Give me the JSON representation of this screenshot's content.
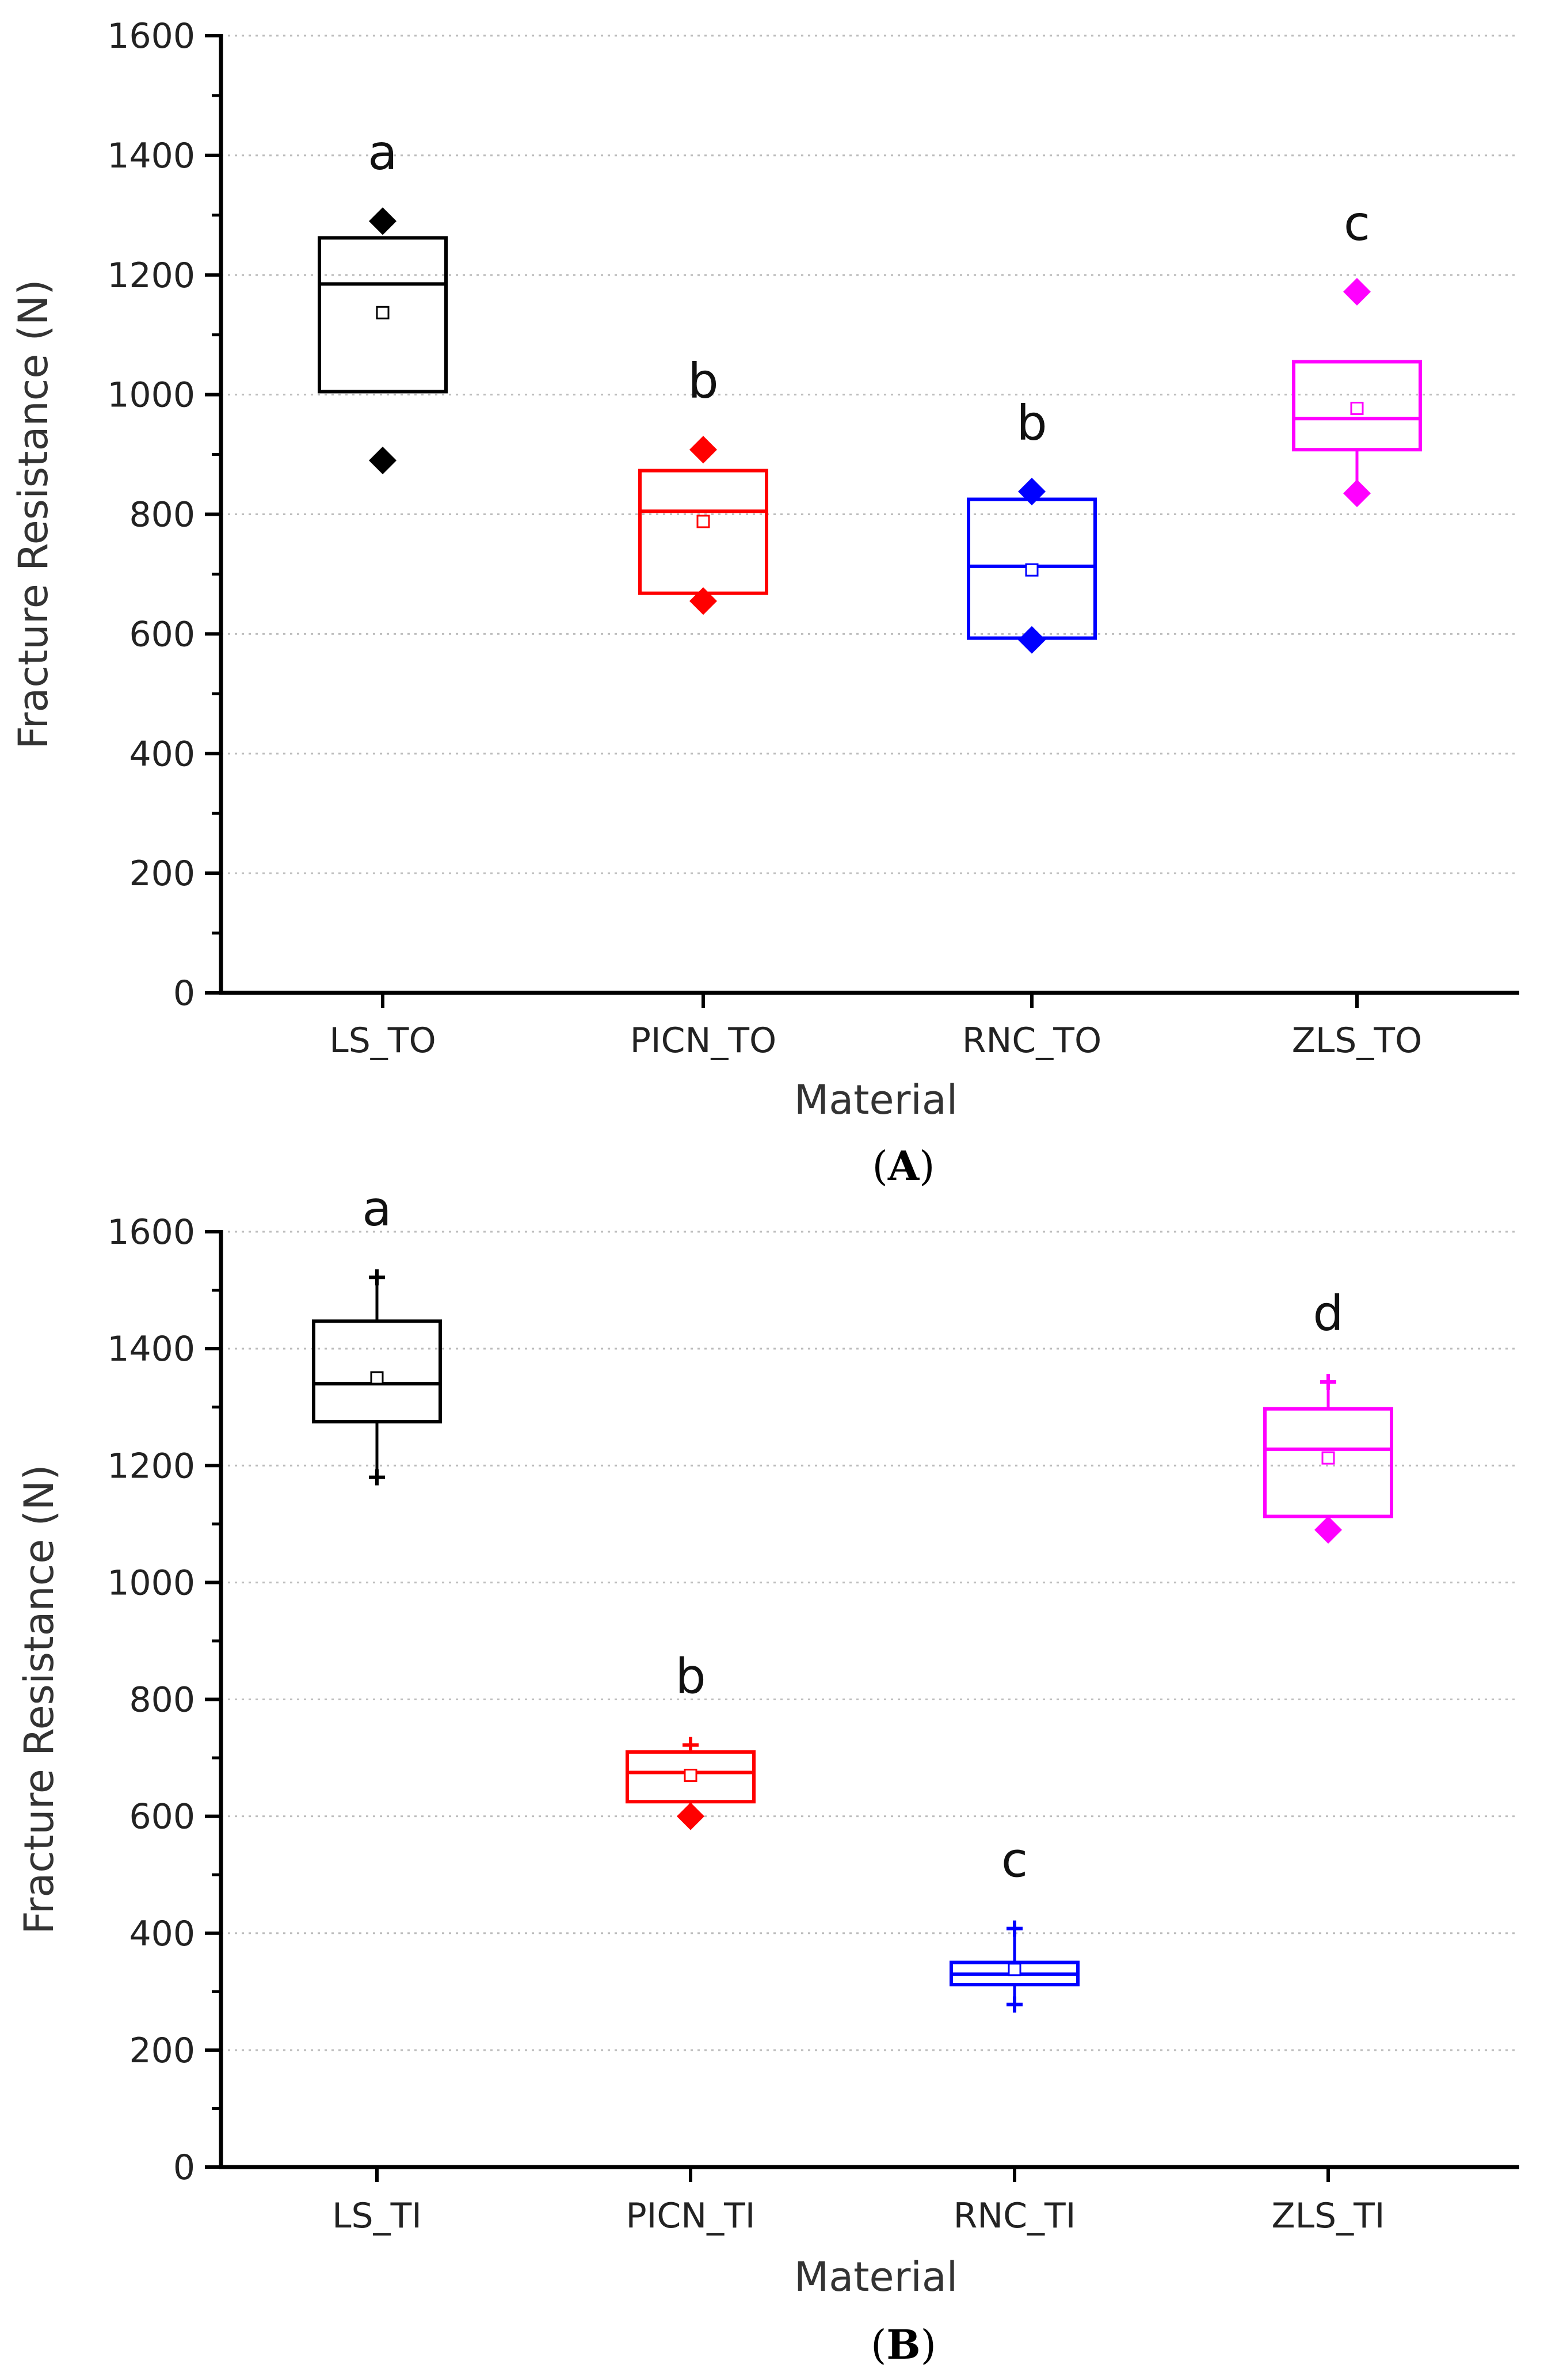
{
  "chart_data": [
    {
      "type": "box",
      "panel_label": "A",
      "xlabel": "Material",
      "ylabel": "Fracture Resistance (N)",
      "ylim": [
        0,
        1600
      ],
      "yticks": [
        0,
        200,
        400,
        600,
        800,
        1000,
        1200,
        1400,
        1600
      ],
      "grid": "horizontal dotted",
      "categories": [
        "LS_TO",
        "PICN_TO",
        "RNC_TO",
        "ZLS_TO"
      ],
      "boxes": [
        {
          "category": "LS_TO",
          "color": "#000000",
          "q1": 1005,
          "median": 1185,
          "q3": 1262,
          "mean": 1137,
          "whisker_low": 1005,
          "whisker_high": 1262,
          "outliers": [
            1290,
            890
          ],
          "letter": "a"
        },
        {
          "category": "PICN_TO",
          "color": "#ff0000",
          "q1": 668,
          "median": 805,
          "q3": 873,
          "mean": 788,
          "whisker_low": 668,
          "whisker_high": 873,
          "outliers": [
            908,
            655
          ],
          "letter": "b"
        },
        {
          "category": "RNC_TO",
          "color": "#0000ff",
          "q1": 593,
          "median": 713,
          "q3": 825,
          "mean": 707,
          "whisker_low": 593,
          "whisker_high": 825,
          "outliers": [
            838,
            590
          ],
          "letter": "b"
        },
        {
          "category": "ZLS_TO",
          "color": "#ff00ff",
          "q1": 908,
          "median": 960,
          "q3": 1055,
          "mean": 977,
          "whisker_low": 835,
          "whisker_high": 1055,
          "outliers": [
            1172,
            835
          ],
          "letter": "c"
        }
      ]
    },
    {
      "type": "box",
      "panel_label": "B",
      "xlabel": "Material",
      "ylabel": "Fracture Resistance (N)",
      "ylim": [
        0,
        1600
      ],
      "yticks": [
        0,
        200,
        400,
        600,
        800,
        1000,
        1200,
        1400,
        1600
      ],
      "grid": "horizontal dotted",
      "categories": [
        "LS_TI",
        "PICN_TI",
        "RNC_TI",
        "ZLS_TI"
      ],
      "boxes": [
        {
          "category": "LS_TI",
          "color": "#000000",
          "q1": 1275,
          "median": 1340,
          "q3": 1447,
          "mean": 1350,
          "whisker_low": 1180,
          "whisker_high": 1522,
          "outliers": [],
          "letter": "a"
        },
        {
          "category": "PICN_TI",
          "color": "#ff0000",
          "q1": 625,
          "median": 675,
          "q3": 710,
          "mean": 670,
          "whisker_low": 605,
          "whisker_high": 722,
          "outliers": [
            600
          ],
          "letter": "b"
        },
        {
          "category": "RNC_TI",
          "color": "#0000ff",
          "q1": 312,
          "median": 330,
          "q3": 350,
          "mean": 338,
          "whisker_low": 278,
          "whisker_high": 408,
          "outliers": [],
          "letter": "c"
        },
        {
          "category": "ZLS_TI",
          "color": "#ff00ff",
          "q1": 1113,
          "median": 1228,
          "q3": 1297,
          "mean": 1213,
          "whisker_low": 1093,
          "whisker_high": 1343,
          "outliers": [
            1090
          ],
          "letter": "d"
        }
      ]
    }
  ]
}
